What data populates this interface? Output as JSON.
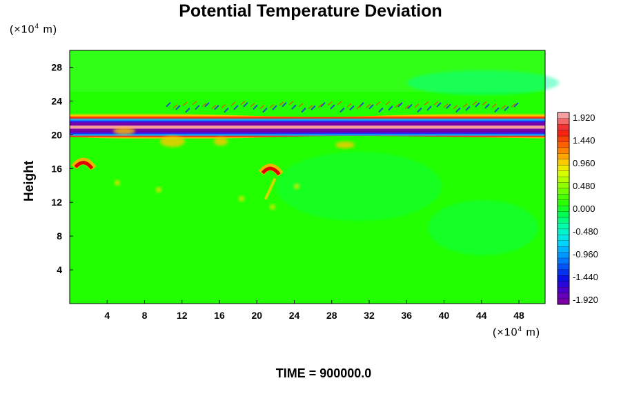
{
  "chart_data": {
    "type": "heatmap",
    "title": "Potential Temperature Deviation",
    "ylabel": "Height",
    "xlabel": "",
    "x_unit": "(×10⁴ m)",
    "y_unit": "(×10⁴ m)",
    "x_ticks": [
      4,
      8,
      12,
      16,
      20,
      24,
      28,
      32,
      36,
      40,
      44,
      48
    ],
    "y_ticks": [
      4,
      8,
      12,
      16,
      20,
      24,
      28
    ],
    "xlim": [
      0,
      50.8
    ],
    "ylim": [
      0,
      30
    ],
    "colorbar": {
      "min": -1.92,
      "max": 1.92,
      "levels": 33,
      "tick_labels": [
        "1.920",
        "1.440",
        "0.960",
        "0.480",
        "0.000",
        "-0.480",
        "-0.960",
        "-1.440",
        "-1.920"
      ]
    },
    "background_value": 0.0,
    "features": [
      {
        "kind": "band",
        "y_center": 21.2,
        "value": 1.9
      },
      {
        "kind": "band",
        "y_center": 20.4,
        "value": -1.9
      },
      {
        "kind": "band",
        "y_center": 22.0,
        "value": -1.9
      },
      {
        "kind": "blob",
        "x": 21.5,
        "y": 15.8,
        "value": 1.6
      },
      {
        "kind": "blob",
        "x": 1.5,
        "y": 16.5,
        "value": 1.5
      }
    ]
  },
  "footer": {
    "time_label": "TIME = 900000.0"
  },
  "colors": {
    "background_field": "#22ff00",
    "positive_max": "#f4a0a0",
    "negative_max": "#7a00a8",
    "zero": "#2aff00"
  }
}
